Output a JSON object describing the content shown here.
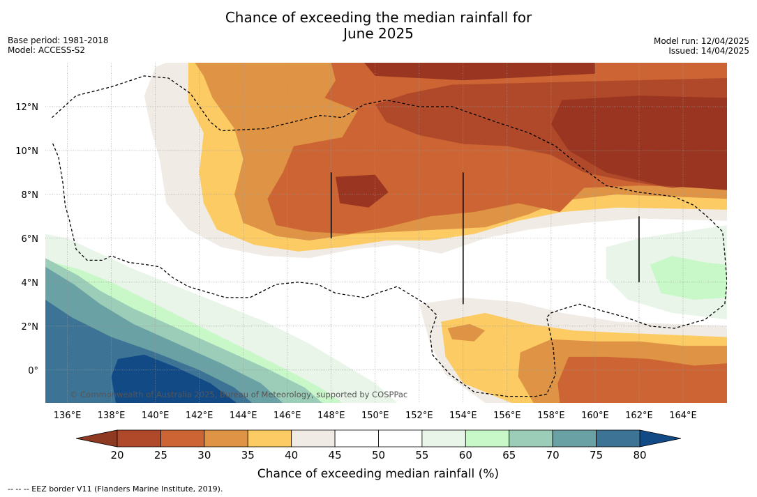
{
  "title": {
    "line1": "Chance of exceeding the median rainfall for",
    "line2": "June 2025"
  },
  "meta_left": {
    "base_period": "Base period: 1981-2018",
    "model": "Model: ACCESS-S2"
  },
  "meta_right": {
    "model_run": "Model run: 12/04/2025",
    "issued": "Issued: 14/04/2025"
  },
  "map": {
    "lon_range": [
      135,
      166
    ],
    "lat_range": [
      -1.5,
      14
    ],
    "lon_ticks": [
      {
        "v": 136,
        "label": "136°E"
      },
      {
        "v": 138,
        "label": "138°E"
      },
      {
        "v": 140,
        "label": "140°E"
      },
      {
        "v": 142,
        "label": "142°E"
      },
      {
        "v": 144,
        "label": "144°E"
      },
      {
        "v": 146,
        "label": "146°E"
      },
      {
        "v": 148,
        "label": "148°E"
      },
      {
        "v": 150,
        "label": "150°E"
      },
      {
        "v": 152,
        "label": "152°E"
      },
      {
        "v": 154,
        "label": "154°E"
      },
      {
        "v": 156,
        "label": "156°E"
      },
      {
        "v": 158,
        "label": "158°E"
      },
      {
        "v": 160,
        "label": "160°E"
      },
      {
        "v": 162,
        "label": "162°E"
      },
      {
        "v": 164,
        "label": "164°E"
      }
    ],
    "lat_ticks": [
      {
        "v": 0,
        "label": "0°"
      },
      {
        "v": 2,
        "label": "2°N"
      },
      {
        "v": 4,
        "label": "4°N"
      },
      {
        "v": 6,
        "label": "6°N"
      },
      {
        "v": 8,
        "label": "8°N"
      },
      {
        "v": 10,
        "label": "10°N"
      },
      {
        "v": 12,
        "label": "12°N"
      }
    ],
    "copyright": "© Commonwealth of Australia 2025, Bureau of Meteorology, supported by COSPPac",
    "background_color": "#ffffff",
    "regions": [
      {
        "name": "very-dry-core-northeast",
        "fill": "#993520",
        "points": [
          [
            158.5,
            12.3
          ],
          [
            162,
            12.5
          ],
          [
            166,
            12.4
          ],
          [
            166,
            8.2
          ],
          [
            163,
            8.4
          ],
          [
            160.5,
            9.0
          ],
          [
            158.8,
            10.0
          ],
          [
            158,
            11.2
          ]
        ]
      },
      {
        "name": "very-dry-core-central",
        "fill": "#993520",
        "points": [
          [
            148.2,
            8.8
          ],
          [
            150,
            8.9
          ],
          [
            150.6,
            8.1
          ],
          [
            149.7,
            7.4
          ],
          [
            148.4,
            7.6
          ]
        ]
      },
      {
        "name": "very-dry-strip-north",
        "fill": "#993520",
        "points": [
          [
            149.5,
            14
          ],
          [
            160,
            14
          ],
          [
            160,
            13.5
          ],
          [
            154,
            13.2
          ],
          [
            150,
            13.4
          ]
        ]
      }
    ],
    "contours_20": [],
    "colors": {
      "20-25": "#b0492a",
      "25-30": "#cc6433",
      "30-35": "#df9445",
      "35-40": "#fdcb64",
      "40-45": "#f0ebe5",
      "45-55": "#ffffff",
      "55-60": "#e9f5e9",
      "60-65": "#c8f8c8",
      "65-70": "#9ccdb8",
      "70-75": "#6aa1a4",
      "75-80": "#3d7496",
      "80+": "#124a86"
    }
  },
  "colorbar": {
    "ticks": [
      "20",
      "25",
      "30",
      "35",
      "40",
      "45",
      "50",
      "55",
      "60",
      "65",
      "70",
      "75",
      "80"
    ],
    "segments": [
      "#b0492a",
      "#cc6433",
      "#df9445",
      "#fdcb64",
      "#f0ebe5",
      "#ffffff",
      "#ffffff",
      "#e9f5e9",
      "#c8f8c8",
      "#9ccdb8",
      "#6aa1a4",
      "#3d7496"
    ],
    "under_color": "#8e3a22",
    "over_color": "#124a86",
    "label": "Chance of exceeding median rainfall (%)"
  },
  "footnote": "--  --  -- EEZ border V11 (Flanders Marine Institute, 2019)."
}
